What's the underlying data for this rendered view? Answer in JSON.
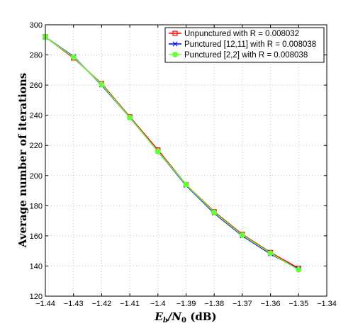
{
  "chart_data": {
    "type": "line",
    "title": "",
    "xlabel": {
      "main": "E",
      "sub1": "b",
      "slash": "/N",
      "sub2": "0",
      "unit": " (dB)"
    },
    "ylabel": "Average number of iterations",
    "xlim": [
      -1.44,
      -1.34
    ],
    "ylim": [
      120,
      300
    ],
    "xticks": [
      -1.44,
      -1.43,
      -1.42,
      -1.41,
      -1.4,
      -1.39,
      -1.38,
      -1.37,
      -1.36,
      -1.35,
      -1.34
    ],
    "xtick_labels": [
      "−1.44",
      "−1.43",
      "−1.42",
      "−1.41",
      "−1.4",
      "−1.39",
      "−1.38",
      "−1.37",
      "−1.36",
      "−1.35",
      "−1.34"
    ],
    "yticks": [
      120,
      140,
      160,
      180,
      200,
      220,
      240,
      260,
      280,
      300
    ],
    "grid": true,
    "legend_position": "top-right",
    "x": [
      -1.44,
      -1.43,
      -1.42,
      -1.41,
      -1.4,
      -1.39,
      -1.38,
      -1.37,
      -1.36,
      -1.35
    ],
    "series": [
      {
        "name": "Unpunctured with R = 0.008032",
        "color": "#ff0000",
        "marker": "square",
        "values": [
          292,
          278,
          261,
          239,
          217,
          194,
          176,
          161,
          149,
          138.5
        ]
      },
      {
        "name": "Punctured [12,11] with R = 0.008038",
        "color": "#0000ff",
        "marker": "x",
        "values": [
          292,
          279,
          260,
          238.5,
          216,
          193.5,
          175,
          160,
          148,
          138
        ]
      },
      {
        "name": "Punctured [2,2] with R = 0.008038",
        "color": "#66ff33",
        "marker": "circle",
        "values": [
          292,
          278.5,
          260.5,
          238.5,
          216,
          194,
          175.5,
          160.5,
          148.5,
          137.5
        ]
      }
    ]
  }
}
